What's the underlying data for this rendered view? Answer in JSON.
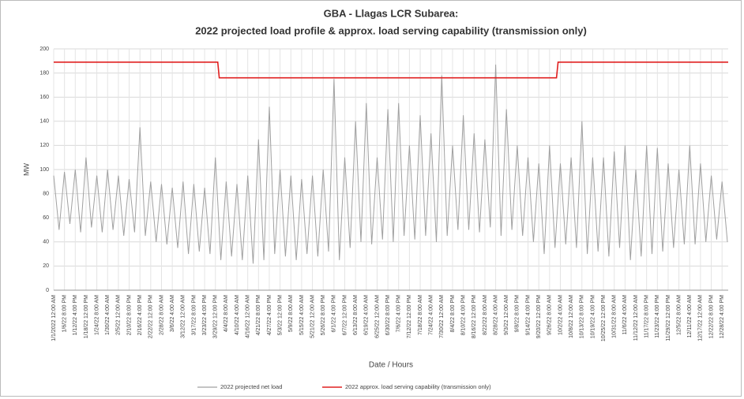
{
  "chart_data": {
    "type": "line",
    "title": "GBA - Llagas LCR Subarea:",
    "subtitle": "2022 projected load profile & approx. load serving capability (transmission only)",
    "y_label": "MW",
    "x_label": "Date / Hours",
    "xlim": [
      0,
      8760
    ],
    "ylim": [
      0,
      200
    ],
    "yticks": [
      0,
      20,
      40,
      60,
      80,
      100,
      120,
      140,
      160,
      180,
      200
    ],
    "grid": true,
    "legend": "bottom",
    "xticks": [
      {
        "value": 0,
        "label": "1/1/2022 12:00 AM"
      },
      {
        "value": 140,
        "label": "1/6/22 8:00 PM"
      },
      {
        "value": 280,
        "label": "1/12/22 4:00 PM"
      },
      {
        "value": 420,
        "label": "1/18/22 12:00 PM"
      },
      {
        "value": 560,
        "label": "1/24/22 8:00 AM"
      },
      {
        "value": 700,
        "label": "1/30/22 4:00 AM"
      },
      {
        "value": 840,
        "label": "2/5/22 12:00 AM"
      },
      {
        "value": 980,
        "label": "2/10/22 8:00 PM"
      },
      {
        "value": 1120,
        "label": "2/16/22 4:00 PM"
      },
      {
        "value": 1260,
        "label": "2/22/22 12:00 PM"
      },
      {
        "value": 1400,
        "label": "2/28/22 8:00 AM"
      },
      {
        "value": 1540,
        "label": "3/6/22 4:00 AM"
      },
      {
        "value": 1680,
        "label": "3/12/22 12:00 AM"
      },
      {
        "value": 1820,
        "label": "3/17/22 8:00 PM"
      },
      {
        "value": 1960,
        "label": "3/23/22 4:00 PM"
      },
      {
        "value": 2100,
        "label": "3/29/22 12:00 PM"
      },
      {
        "value": 2240,
        "label": "4/4/22 8:00 AM"
      },
      {
        "value": 2380,
        "label": "4/10/22 4:00 AM"
      },
      {
        "value": 2520,
        "label": "4/16/22 12:00 AM"
      },
      {
        "value": 2660,
        "label": "4/21/22 8:00 PM"
      },
      {
        "value": 2800,
        "label": "4/27/22 4:00 PM"
      },
      {
        "value": 2940,
        "label": "5/3/22 12:00 PM"
      },
      {
        "value": 3080,
        "label": "5/9/22 8:00 AM"
      },
      {
        "value": 3220,
        "label": "5/15/22 4:00 AM"
      },
      {
        "value": 3360,
        "label": "5/21/22 12:00 AM"
      },
      {
        "value": 3500,
        "label": "5/26/22 8:00 PM"
      },
      {
        "value": 3640,
        "label": "6/1/22 4:00 PM"
      },
      {
        "value": 3780,
        "label": "6/7/22 12:00 PM"
      },
      {
        "value": 3920,
        "label": "6/13/22 8:00 AM"
      },
      {
        "value": 4060,
        "label": "6/19/22 4:00 AM"
      },
      {
        "value": 4200,
        "label": "6/25/22 12:00 AM"
      },
      {
        "value": 4340,
        "label": "6/30/22 8:00 PM"
      },
      {
        "value": 4480,
        "label": "7/6/22 4:00 PM"
      },
      {
        "value": 4620,
        "label": "7/12/22 12:00 PM"
      },
      {
        "value": 4760,
        "label": "7/18/22 8:00 AM"
      },
      {
        "value": 4900,
        "label": "7/24/22 4:00 AM"
      },
      {
        "value": 5040,
        "label": "7/30/22 12:00 AM"
      },
      {
        "value": 5180,
        "label": "8/4/22 8:00 PM"
      },
      {
        "value": 5320,
        "label": "8/10/22 4:00 PM"
      },
      {
        "value": 5460,
        "label": "8/16/22 12:00 PM"
      },
      {
        "value": 5600,
        "label": "8/22/22 8:00 AM"
      },
      {
        "value": 5740,
        "label": "8/28/22 4:00 AM"
      },
      {
        "value": 5880,
        "label": "9/3/22 12:00 AM"
      },
      {
        "value": 6020,
        "label": "9/8/22 8:00 PM"
      },
      {
        "value": 6160,
        "label": "9/14/22 4:00 PM"
      },
      {
        "value": 6300,
        "label": "9/20/22 12:00 PM"
      },
      {
        "value": 6440,
        "label": "9/26/22 8:00 AM"
      },
      {
        "value": 6580,
        "label": "10/2/22 4:00 AM"
      },
      {
        "value": 6720,
        "label": "10/8/22 12:00 AM"
      },
      {
        "value": 6860,
        "label": "10/13/22 8:00 PM"
      },
      {
        "value": 7000,
        "label": "10/19/22 4:00 PM"
      },
      {
        "value": 7140,
        "label": "10/25/22 12:00 PM"
      },
      {
        "value": 7280,
        "label": "10/31/22 8:00 AM"
      },
      {
        "value": 7420,
        "label": "11/6/22 4:00 AM"
      },
      {
        "value": 7560,
        "label": "11/12/22 12:00 AM"
      },
      {
        "value": 7700,
        "label": "11/17/22 8:00 PM"
      },
      {
        "value": 7840,
        "label": "11/23/22 4:00 PM"
      },
      {
        "value": 7980,
        "label": "11/29/22 12:00 PM"
      },
      {
        "value": 8120,
        "label": "12/5/22 8:00 AM"
      },
      {
        "value": 8260,
        "label": "12/11/22 4:00 AM"
      },
      {
        "value": 8400,
        "label": "12/17/22 12:00 AM"
      },
      {
        "value": 8540,
        "label": "12/22/22 8:00 PM"
      },
      {
        "value": 8680,
        "label": "12/28/22 4:00 PM"
      }
    ],
    "series": [
      {
        "name": "2022 projected net load",
        "color": "#a0a0a0",
        "x": [
          0,
          70,
          140,
          210,
          280,
          350,
          420,
          490,
          560,
          630,
          700,
          770,
          840,
          910,
          980,
          1050,
          1120,
          1190,
          1260,
          1330,
          1400,
          1470,
          1540,
          1610,
          1680,
          1750,
          1820,
          1890,
          1960,
          2030,
          2100,
          2170,
          2240,
          2310,
          2380,
          2450,
          2520,
          2590,
          2660,
          2730,
          2800,
          2870,
          2940,
          3010,
          3080,
          3150,
          3220,
          3290,
          3360,
          3430,
          3500,
          3570,
          3640,
          3710,
          3780,
          3850,
          3920,
          3990,
          4060,
          4130,
          4200,
          4270,
          4340,
          4410,
          4480,
          4550,
          4620,
          4690,
          4760,
          4830,
          4900,
          4970,
          5040,
          5110,
          5180,
          5250,
          5320,
          5390,
          5460,
          5530,
          5600,
          5670,
          5740,
          5810,
          5880,
          5950,
          6020,
          6090,
          6160,
          6230,
          6300,
          6370,
          6440,
          6510,
          6580,
          6650,
          6720,
          6790,
          6860,
          6930,
          7000,
          7070,
          7140,
          7210,
          7280,
          7350,
          7420,
          7490,
          7560,
          7630,
          7700,
          7770,
          7840,
          7910,
          7980,
          8050,
          8120,
          8190,
          8260,
          8330,
          8400,
          8470,
          8540,
          8610,
          8680,
          8750
        ],
        "values": [
          95,
          50,
          98,
          55,
          100,
          48,
          110,
          52,
          95,
          48,
          100,
          50,
          95,
          45,
          92,
          48,
          135,
          45,
          90,
          40,
          88,
          38,
          85,
          35,
          90,
          30,
          88,
          32,
          85,
          30,
          110,
          25,
          90,
          28,
          88,
          25,
          95,
          22,
          125,
          25,
          152,
          30,
          100,
          28,
          95,
          25,
          92,
          30,
          95,
          28,
          100,
          32,
          175,
          25,
          110,
          35,
          140,
          40,
          155,
          38,
          110,
          42,
          150,
          40,
          155,
          45,
          120,
          42,
          145,
          45,
          130,
          40,
          178,
          45,
          120,
          50,
          145,
          50,
          130,
          48,
          125,
          52,
          187,
          45,
          150,
          50,
          120,
          45,
          110,
          40,
          105,
          30,
          120,
          35,
          105,
          38,
          110,
          35,
          140,
          30,
          110,
          32,
          110,
          28,
          115,
          35,
          120,
          25,
          100,
          28,
          120,
          30,
          118,
          32,
          105,
          35,
          100,
          38,
          120,
          38,
          105,
          40,
          95,
          42,
          90,
          40
        ]
      },
      {
        "name": "2022 approx. load serving  capability (transmission only)",
        "color": "#e02020",
        "x": [
          0,
          2130,
          2150,
          6530,
          6550,
          8760
        ],
        "values": [
          189,
          189,
          176,
          176,
          189,
          189
        ]
      }
    ]
  }
}
